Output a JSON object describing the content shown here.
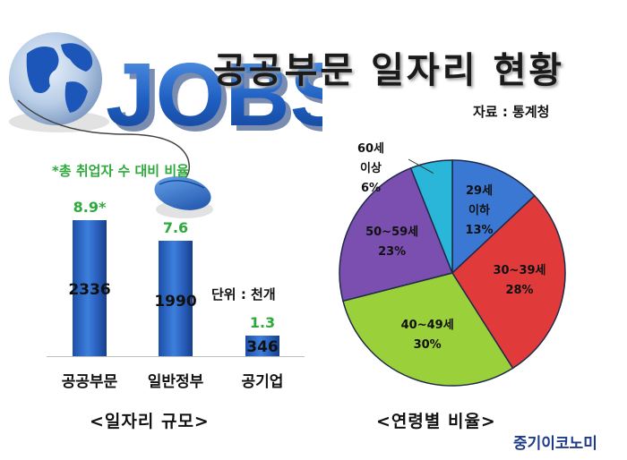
{
  "header": {
    "title": "공공부문 일자리 현황",
    "source": "자료 : 통계청"
  },
  "hero": {
    "word": "JOBS"
  },
  "left_chart": {
    "note": "*총 취업자 수 대비 비율",
    "unit": "단위 : 천개",
    "caption": "<일자리 규모>"
  },
  "right_chart": {
    "caption": "<연령별 비율>"
  },
  "brand": "중기이코노미",
  "chart_data": [
    {
      "type": "bar",
      "title": "<일자리 규모>",
      "unit": "단위 : 천개",
      "categories": [
        "공공부문",
        "일반정부",
        "공기업"
      ],
      "values": [
        2336,
        1990,
        346
      ],
      "value_labels": [
        "2336",
        "1990",
        "346"
      ],
      "share_labels": [
        "8.9*",
        "7.6",
        "1.3"
      ],
      "note": "*총 취업자 수 대비 비율",
      "ylim": [
        0,
        2336
      ],
      "grid": false
    },
    {
      "type": "pie",
      "title": "<연령별 비율>",
      "categories": [
        "29세 이하",
        "30~39세",
        "40~49세",
        "50~59세",
        "60세 이상"
      ],
      "label_lines": [
        [
          "29세",
          "이하",
          "13%"
        ],
        [
          "30~39세",
          "28%"
        ],
        [
          "40~49세",
          "30%"
        ],
        [
          "50~59세",
          "23%"
        ],
        [
          "60세",
          "이상",
          "6%"
        ]
      ],
      "values": [
        13,
        28,
        30,
        23,
        6
      ],
      "colors": [
        "#3a78d4",
        "#e03a3a",
        "#9ad03a",
        "#7a4fb0",
        "#2ab6d8"
      ]
    }
  ]
}
